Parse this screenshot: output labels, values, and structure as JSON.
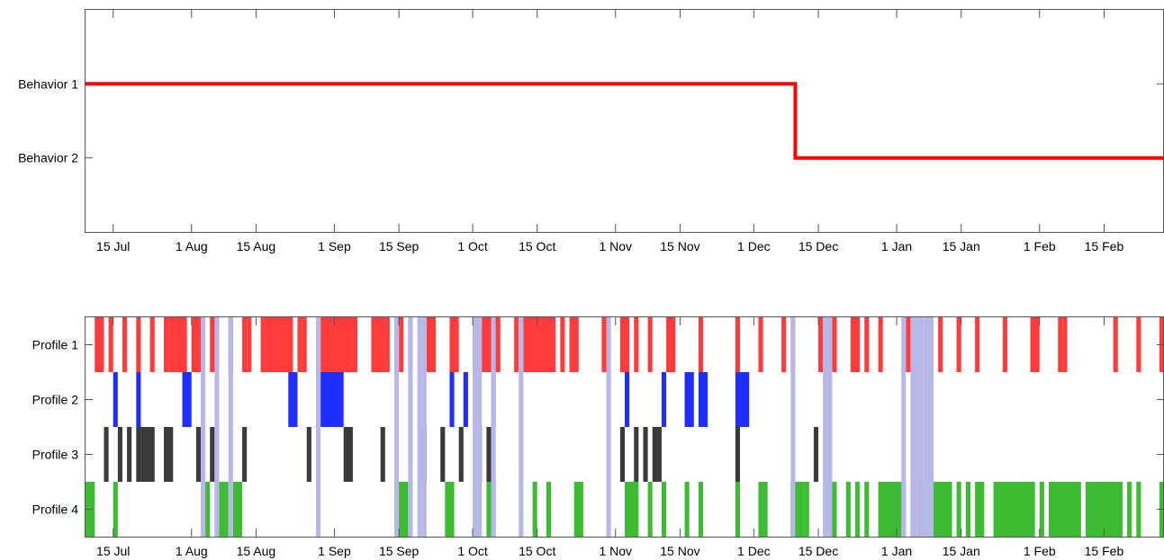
{
  "chart_data": [
    {
      "type": "line",
      "title": "",
      "xlabel": "",
      "ylabel": "",
      "x_ticks": [
        "15 Jul",
        "1 Aug",
        "15 Aug",
        "1 Sep",
        "15 Sep",
        "1 Oct",
        "15 Oct",
        "1 Nov",
        "15 Nov",
        "1 Dec",
        "15 Dec",
        "1 Jan",
        "15 Jan",
        "1 Feb",
        "15 Feb"
      ],
      "x_tick_values": [
        0,
        17,
        31,
        48,
        62,
        78,
        92,
        109,
        123,
        139,
        153,
        170,
        184,
        201,
        215
      ],
      "xlim": [
        -6,
        228
      ],
      "y_categories": [
        "Behavior 1",
        "Behavior 2"
      ],
      "ylim": [
        0,
        3
      ],
      "series": [
        {
          "color": "#ff0000",
          "points": [
            [
              -6,
              1
            ],
            [
              148,
              1
            ],
            [
              148,
              2
            ],
            [
              228,
              2
            ]
          ]
        }
      ],
      "grid": false
    },
    {
      "type": "event-raster",
      "title": "",
      "xlabel": "",
      "ylabel": "",
      "x_ticks": [
        "15 Jul",
        "1 Aug",
        "15 Aug",
        "1 Sep",
        "15 Sep",
        "1 Oct",
        "15 Oct",
        "1 Nov",
        "15 Nov",
        "1 Dec",
        "15 Dec",
        "1 Jan",
        "15 Jan",
        "1 Feb",
        "15 Feb"
      ],
      "x_tick_values": [
        0,
        17,
        31,
        48,
        62,
        78,
        92,
        109,
        123,
        139,
        153,
        170,
        184,
        201,
        215
      ],
      "xlim": [
        -6,
        228
      ],
      "rows": [
        {
          "label": "Profile 1",
          "color": "#ff3b3b",
          "spans": [
            [
              -4,
              -2
            ],
            [
              -1,
              0
            ],
            [
              2,
              3
            ],
            [
              5,
              6
            ],
            [
              8,
              9
            ],
            [
              11,
              12
            ],
            [
              12,
              15
            ],
            [
              15,
              16
            ],
            [
              17,
              19
            ],
            [
              21,
              23
            ],
            [
              25,
              26
            ],
            [
              28,
              29
            ],
            [
              29,
              30
            ],
            [
              32,
              33
            ],
            [
              33,
              39
            ],
            [
              40,
              41
            ],
            [
              41,
              42
            ],
            [
              45,
              52
            ],
            [
              52,
              53
            ],
            [
              56,
              59
            ],
            [
              59,
              60
            ],
            [
              62,
              63
            ],
            [
              64,
              65
            ],
            [
              68,
              70
            ],
            [
              73,
              75
            ],
            [
              78,
              80
            ],
            [
              80,
              84
            ],
            [
              87,
              88
            ],
            [
              89,
              96
            ],
            [
              97,
              98
            ],
            [
              99,
              101
            ],
            [
              106,
              107
            ],
            [
              110,
              112
            ],
            [
              113,
              114
            ],
            [
              116,
              117
            ],
            [
              120,
              122
            ],
            [
              127,
              128
            ],
            [
              135,
              136
            ],
            [
              140,
              141
            ],
            [
              145,
              146
            ],
            [
              147,
              148
            ],
            [
              153,
              154
            ],
            [
              156,
              157
            ],
            [
              160,
              162
            ],
            [
              163,
              164
            ],
            [
              166,
              167
            ],
            [
              172,
              173
            ],
            [
              177,
              178
            ],
            [
              179,
              180
            ],
            [
              183,
              184
            ],
            [
              187,
              188
            ],
            [
              193,
              194
            ],
            [
              199,
              201
            ],
            [
              205,
              206
            ],
            [
              206,
              207
            ],
            [
              217,
              218
            ],
            [
              222,
              223
            ],
            [
              227,
              228
            ]
          ]
        },
        {
          "label": "Profile 2",
          "color": "#1f2dff",
          "spans": [
            [
              0,
              1
            ],
            [
              5,
              6
            ],
            [
              15,
              17
            ],
            [
              38,
              40
            ],
            [
              45,
              50
            ],
            [
              73,
              74
            ],
            [
              76,
              77
            ],
            [
              82,
              83
            ],
            [
              111,
              112
            ],
            [
              119,
              120
            ],
            [
              124,
              126
            ],
            [
              127,
              129
            ],
            [
              135,
              138
            ]
          ]
        },
        {
          "label": "Profile 3",
          "color": "#3a3a3a",
          "spans": [
            [
              -2,
              -1
            ],
            [
              1,
              2
            ],
            [
              3,
              4
            ],
            [
              5,
              6
            ],
            [
              6,
              9
            ],
            [
              11,
              13
            ],
            [
              18,
              19
            ],
            [
              21,
              22
            ],
            [
              28,
              29
            ],
            [
              42,
              43
            ],
            [
              50,
              52
            ],
            [
              58,
              59
            ],
            [
              67,
              68
            ],
            [
              71,
              72
            ],
            [
              75,
              76
            ],
            [
              79,
              80
            ],
            [
              81,
              82
            ],
            [
              110,
              111
            ],
            [
              113,
              114
            ],
            [
              115,
              116
            ],
            [
              117,
              119
            ],
            [
              135,
              136
            ],
            [
              152,
              153
            ]
          ]
        },
        {
          "label": "Profile 4",
          "color": "#3dbb33",
          "spans": [
            [
              -6,
              -4
            ],
            [
              0,
              1
            ],
            [
              20,
              21
            ],
            [
              23,
              25
            ],
            [
              26,
              28
            ],
            [
              61,
              64
            ],
            [
              72,
              74
            ],
            [
              81,
              83
            ],
            [
              91,
              92
            ],
            [
              94,
              95
            ],
            [
              100,
              102
            ],
            [
              111,
              114
            ],
            [
              116,
              117
            ],
            [
              119,
              120
            ],
            [
              124,
              125
            ],
            [
              127,
              128
            ],
            [
              135,
              136
            ],
            [
              140,
              142
            ],
            [
              147,
              150
            ],
            [
              150,
              151
            ],
            [
              155,
              157
            ],
            [
              159,
              160
            ],
            [
              161,
              162
            ],
            [
              163,
              164
            ],
            [
              166,
              172
            ],
            [
              173,
              176
            ],
            [
              178,
              182
            ],
            [
              183,
              184
            ],
            [
              185,
              186
            ],
            [
              187,
              189
            ],
            [
              191,
              200
            ],
            [
              201,
              202
            ],
            [
              203,
              210
            ],
            [
              211,
              219
            ],
            [
              220,
              221
            ],
            [
              222,
              223
            ],
            [
              227,
              228
            ]
          ]
        }
      ],
      "highlight": {
        "color": "#b7b7e8",
        "spans": [
          [
            19,
            20
          ],
          [
            22,
            23
          ],
          [
            25,
            26
          ],
          [
            44,
            45
          ],
          [
            61,
            62
          ],
          [
            64,
            65
          ],
          [
            66,
            67
          ],
          [
            67,
            68
          ],
          [
            78,
            80
          ],
          [
            82,
            83
          ],
          [
            88,
            89
          ],
          [
            107,
            108
          ],
          [
            147,
            148
          ],
          [
            154,
            156
          ],
          [
            171,
            172
          ],
          [
            173,
            174
          ],
          [
            174,
            175
          ],
          [
            175,
            176
          ],
          [
            176,
            178
          ]
        ]
      },
      "grid": false
    }
  ]
}
